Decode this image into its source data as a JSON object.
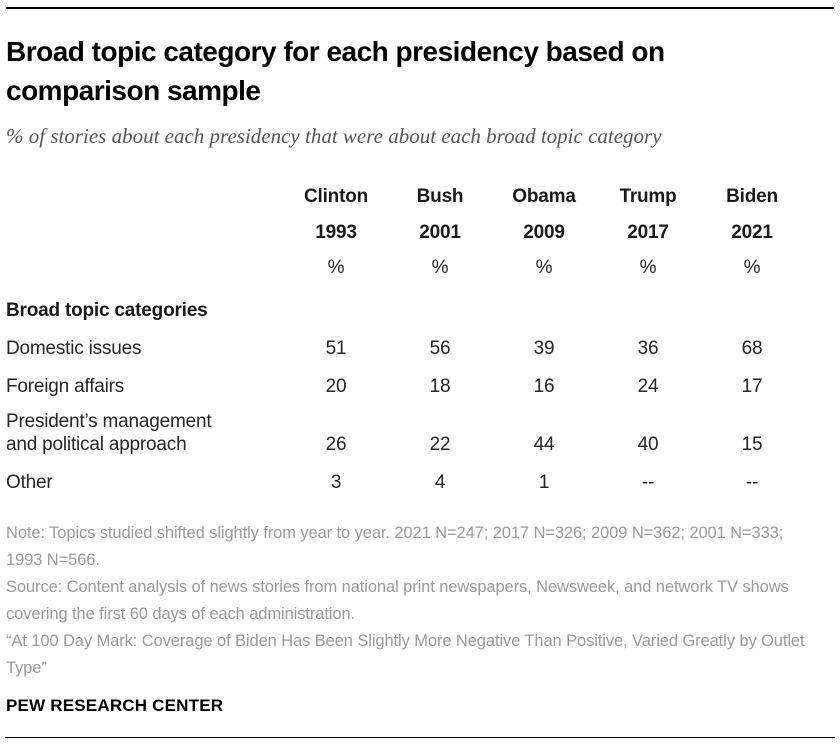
{
  "header": {
    "title": "Broad topic category for each presidency based on comparison sample",
    "subtitle": "% of stories about each presidency that were about each broad topic category"
  },
  "table": {
    "columns": [
      {
        "name": "Clinton",
        "year": "1993",
        "unit": "%"
      },
      {
        "name": "Bush",
        "year": "2001",
        "unit": "%"
      },
      {
        "name": "Obama",
        "year": "2009",
        "unit": "%"
      },
      {
        "name": "Trump",
        "year": "2017",
        "unit": "%"
      },
      {
        "name": "Biden",
        "year": "2021",
        "unit": "%"
      }
    ],
    "section_header": "Broad topic categories",
    "rows": [
      {
        "label": "Domestic issues",
        "values": [
          "51",
          "56",
          "39",
          "36",
          "68"
        ]
      },
      {
        "label": "Foreign affairs",
        "values": [
          "20",
          "18",
          "16",
          "24",
          "17"
        ]
      },
      {
        "label": "President’s management and political approach",
        "label_lines": [
          "President’s management",
          "and political approach"
        ],
        "values": [
          "26",
          "22",
          "44",
          "40",
          "15"
        ]
      },
      {
        "label": "Other",
        "values": [
          "3",
          "4",
          "1",
          "--",
          "--"
        ]
      }
    ]
  },
  "notes": {
    "note": "Note: Topics studied shifted slightly from year to year. 2021 N=247; 2017 N=326; 2009 N=362; 2001 N=333; 1993 N=566.",
    "source": "Source: Content analysis of news stories from national print newspapers, Newsweek, and network TV shows covering the first 60 days of each administration.",
    "report": "“At 100 Day Mark: Coverage of Biden Has Been Slightly More Negative Than Positive, Varied Greatly by Outlet Type”"
  },
  "footer": {
    "brand": "PEW RESEARCH CENTER"
  },
  "colors": {
    "title": "#000000",
    "subtitle_gray": "#565656",
    "table_text": "#262626",
    "notes_gray": "#9a9a9a",
    "rule": "#000000"
  },
  "chart_data": {
    "type": "table",
    "title": "Broad topic category for each presidency based on comparison sample",
    "subtitle": "% of stories about each presidency that were about each broad topic category",
    "categories": [
      "Clinton 1993",
      "Bush 2001",
      "Obama 2009",
      "Trump 2017",
      "Biden 2021"
    ],
    "series": [
      {
        "name": "Domestic issues",
        "values": [
          51,
          56,
          39,
          36,
          68
        ]
      },
      {
        "name": "Foreign affairs",
        "values": [
          20,
          18,
          16,
          24,
          17
        ]
      },
      {
        "name": "President’s management and political approach",
        "values": [
          26,
          22,
          44,
          40,
          15
        ]
      },
      {
        "name": "Other",
        "values": [
          3,
          4,
          1,
          null,
          null
        ]
      }
    ],
    "unit": "%",
    "missing_value_marker": "--"
  }
}
